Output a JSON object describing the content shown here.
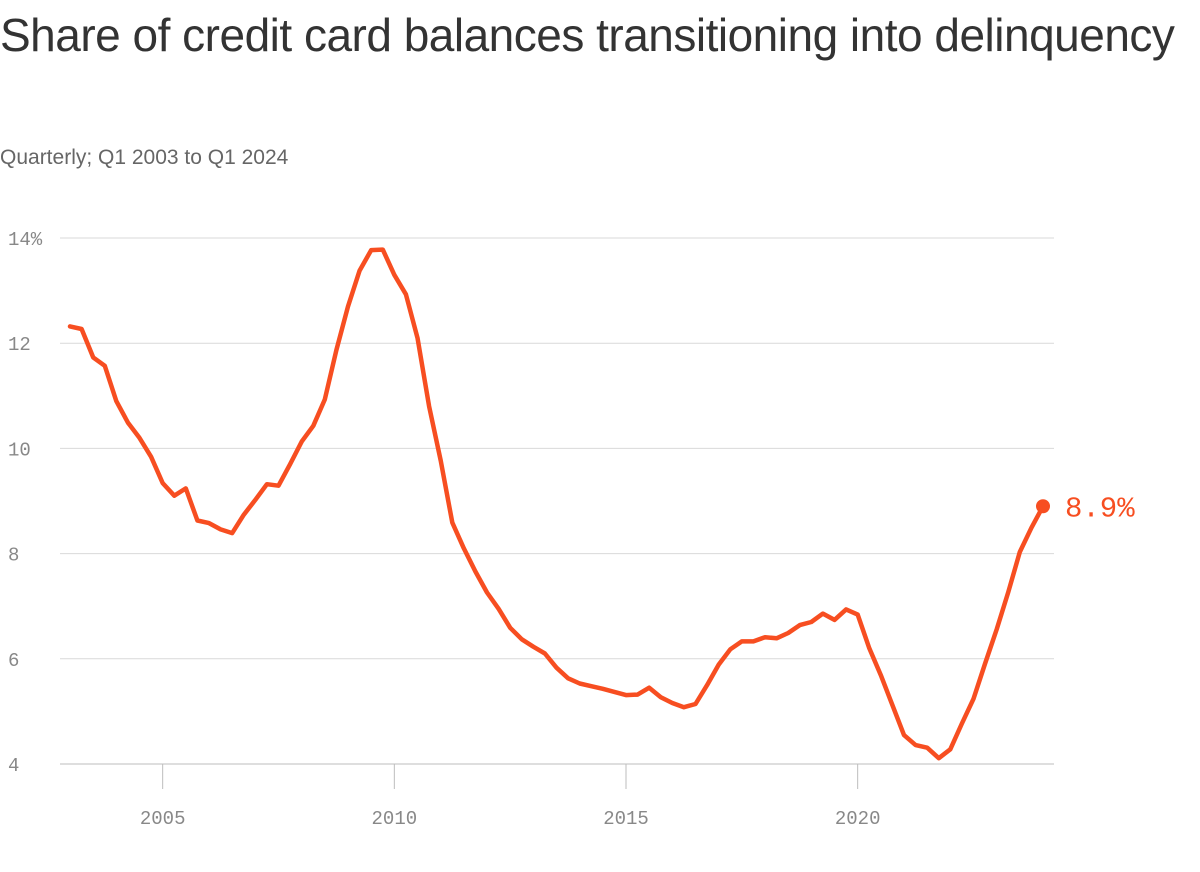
{
  "title": "Share of credit card balances transitioning into delinquency",
  "subtitle": "Quarterly; Q1 2003 to Q1 2024",
  "chart_data": {
    "type": "line",
    "title": "Share of credit card balances transitioning into delinquency",
    "subtitle": "Quarterly; Q1 2003 to Q1 2024",
    "xlabel": "",
    "ylabel": "",
    "xlim": [
      2003,
      2024
    ],
    "ylim": [
      4,
      14
    ],
    "x_ticks": [
      {
        "value": 2005,
        "label": "2005"
      },
      {
        "value": 2010,
        "label": "2010"
      },
      {
        "value": 2015,
        "label": "2015"
      },
      {
        "value": 2020,
        "label": "2020"
      }
    ],
    "y_ticks": [
      {
        "value": 14,
        "label": "14%"
      },
      {
        "value": 12,
        "label": "12"
      },
      {
        "value": 10,
        "label": "10"
      },
      {
        "value": 8,
        "label": "8"
      },
      {
        "value": 6,
        "label": "6"
      },
      {
        "value": 4,
        "label": "4"
      }
    ],
    "grid": true,
    "color": "#f74e21",
    "end_label": "8.9%",
    "series": [
      {
        "x": [
          "Q1 2003",
          "Q2 2003",
          "Q3 2003",
          "Q4 2003",
          "Q1 2004",
          "Q2 2004",
          "Q3 2004",
          "Q4 2004",
          "Q1 2005",
          "Q2 2005",
          "Q3 2005",
          "Q4 2005",
          "Q1 2006",
          "Q2 2006",
          "Q3 2006",
          "Q4 2006",
          "Q1 2007",
          "Q2 2007",
          "Q3 2007",
          "Q4 2007",
          "Q1 2008",
          "Q2 2008",
          "Q3 2008",
          "Q4 2008",
          "Q1 2009",
          "Q2 2009",
          "Q3 2009",
          "Q4 2009",
          "Q1 2010",
          "Q2 2010",
          "Q3 2010",
          "Q4 2010",
          "Q1 2011",
          "Q2 2011",
          "Q3 2011",
          "Q4 2011",
          "Q1 2012",
          "Q2 2012",
          "Q3 2012",
          "Q4 2012",
          "Q1 2013",
          "Q2 2013",
          "Q3 2013",
          "Q4 2013",
          "Q1 2014",
          "Q2 2014",
          "Q3 2014",
          "Q4 2014",
          "Q1 2015",
          "Q2 2015",
          "Q3 2015",
          "Q4 2015",
          "Q1 2016",
          "Q2 2016",
          "Q3 2016",
          "Q4 2016",
          "Q1 2017",
          "Q2 2017",
          "Q3 2017",
          "Q4 2017",
          "Q1 2018",
          "Q2 2018",
          "Q3 2018",
          "Q4 2018",
          "Q1 2019",
          "Q2 2019",
          "Q3 2019",
          "Q4 2019",
          "Q1 2020",
          "Q2 2020",
          "Q3 2020",
          "Q4 2020",
          "Q1 2021",
          "Q2 2021",
          "Q3 2021",
          "Q4 2021",
          "Q1 2022",
          "Q2 2022",
          "Q3 2022",
          "Q4 2022",
          "Q1 2023",
          "Q2 2023",
          "Q3 2023",
          "Q4 2023",
          "Q1 2024"
        ],
        "values": [
          12.32,
          12.27,
          11.73,
          11.57,
          10.9,
          10.49,
          10.2,
          9.84,
          9.34,
          9.1,
          9.24,
          8.63,
          8.58,
          8.46,
          8.39,
          8.74,
          9.02,
          9.32,
          9.29,
          9.7,
          10.13,
          10.43,
          10.93,
          11.87,
          12.7,
          13.38,
          13.77,
          13.78,
          13.3,
          12.93,
          12.1,
          10.8,
          9.77,
          8.59,
          8.1,
          7.66,
          7.26,
          6.95,
          6.59,
          6.37,
          6.23,
          6.1,
          5.83,
          5.63,
          5.53,
          5.48,
          5.43,
          5.37,
          5.31,
          5.32,
          5.45,
          5.27,
          5.16,
          5.08,
          5.14,
          5.5,
          5.89,
          6.18,
          6.33,
          6.33,
          6.41,
          6.39,
          6.49,
          6.64,
          6.7,
          6.86,
          6.74,
          6.94,
          6.84,
          6.2,
          5.69,
          5.12,
          4.55,
          4.36,
          4.31,
          4.11,
          4.28,
          4.77,
          5.24,
          5.91,
          6.56,
          7.27,
          8.03,
          8.49,
          8.9
        ]
      }
    ]
  }
}
